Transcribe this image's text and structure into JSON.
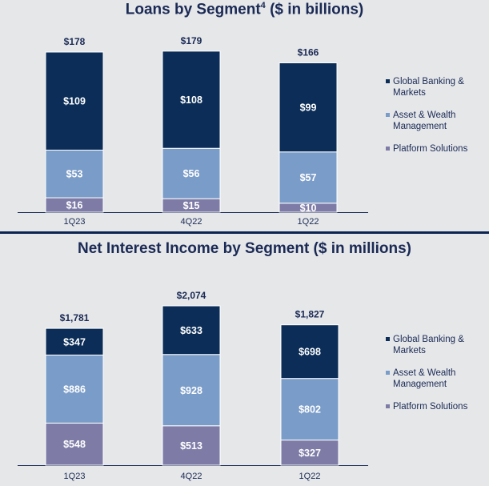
{
  "legend": {
    "items": [
      {
        "label": "Global Banking & Markets",
        "color": "#0b2d57"
      },
      {
        "label": "Asset & Wealth Management",
        "color": "#7a9cc8"
      },
      {
        "label": "Platform Solutions",
        "color": "#7e7ca7"
      }
    ]
  },
  "chart_data": [
    {
      "type": "bar",
      "stacked": true,
      "title": "Loans by Segment⁴ ($ in billions)",
      "categories": [
        "1Q23",
        "4Q22",
        "1Q22"
      ],
      "series": [
        {
          "name": "Platform Solutions",
          "values": [
            16,
            15,
            10
          ],
          "labels": [
            "$16",
            "$15",
            "$10"
          ],
          "color": "#7e7ca7"
        },
        {
          "name": "Asset & Wealth Management",
          "values": [
            53,
            56,
            57
          ],
          "labels": [
            "$53",
            "$56",
            "$57"
          ],
          "color": "#7a9cc8"
        },
        {
          "name": "Global Banking & Markets",
          "values": [
            109,
            108,
            99
          ],
          "labels": [
            "$109",
            "$108",
            "$99"
          ],
          "color": "#0b2d57"
        }
      ],
      "totals": [
        178,
        179,
        166
      ],
      "total_labels": [
        "$178",
        "$179",
        "$166"
      ],
      "ylim": [
        0,
        178
      ]
    },
    {
      "type": "bar",
      "stacked": true,
      "title": "Net Interest Income by Segment ($ in millions)",
      "categories": [
        "1Q23",
        "4Q22",
        "1Q22"
      ],
      "series": [
        {
          "name": "Platform Solutions",
          "values": [
            548,
            513,
            327
          ],
          "labels": [
            "$548",
            "$513",
            "$327"
          ],
          "color": "#7e7ca7"
        },
        {
          "name": "Asset & Wealth Management",
          "values": [
            886,
            928,
            802
          ],
          "labels": [
            "$886",
            "$928",
            "$802"
          ],
          "color": "#7a9cc8"
        },
        {
          "name": "Global Banking & Markets",
          "values": [
            347,
            633,
            698
          ],
          "labels": [
            "$347",
            "$633",
            "$698"
          ],
          "color": "#0b2d57"
        }
      ],
      "totals": [
        1781,
        2074,
        1827
      ],
      "total_labels": [
        "$1,781",
        "$2,074",
        "$1,827"
      ],
      "ylim": [
        0,
        2074
      ]
    }
  ]
}
